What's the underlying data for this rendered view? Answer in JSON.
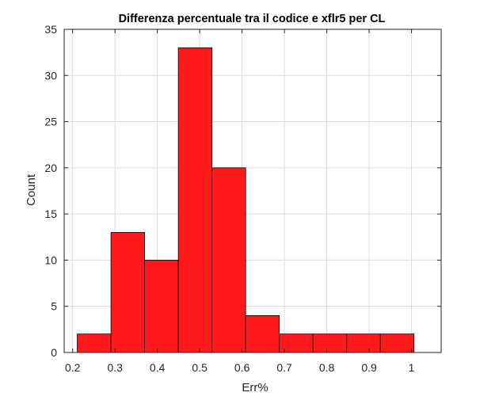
{
  "chart_data": {
    "type": "bar",
    "title": "Differenza percentuale tra il codice e xflr5 per CL",
    "xlabel": "Err%",
    "ylabel": "Count",
    "xlim": [
      0.18,
      1.07
    ],
    "ylim": [
      0,
      35
    ],
    "xticks": [
      0.2,
      0.3,
      0.4,
      0.5,
      0.6,
      0.7,
      0.8,
      0.9,
      1
    ],
    "xtick_labels": [
      "0.2",
      "0.3",
      "0.4",
      "0.5",
      "0.6",
      "0.7",
      "0.8",
      "0.9",
      "1"
    ],
    "yticks": [
      0,
      5,
      10,
      15,
      20,
      25,
      30,
      35
    ],
    "ytick_labels": [
      "0",
      "5",
      "10",
      "15",
      "20",
      "25",
      "30",
      "35"
    ],
    "grid": true,
    "bin_edges": [
      0.211,
      0.2905,
      0.37,
      0.4495,
      0.529,
      0.6085,
      0.688,
      0.7675,
      0.847,
      0.9265,
      1.006
    ],
    "counts": [
      2,
      13,
      10,
      33,
      20,
      4,
      2,
      2,
      2,
      2
    ],
    "bar_color": "#ff1a1a",
    "edge_color": "#000000"
  }
}
